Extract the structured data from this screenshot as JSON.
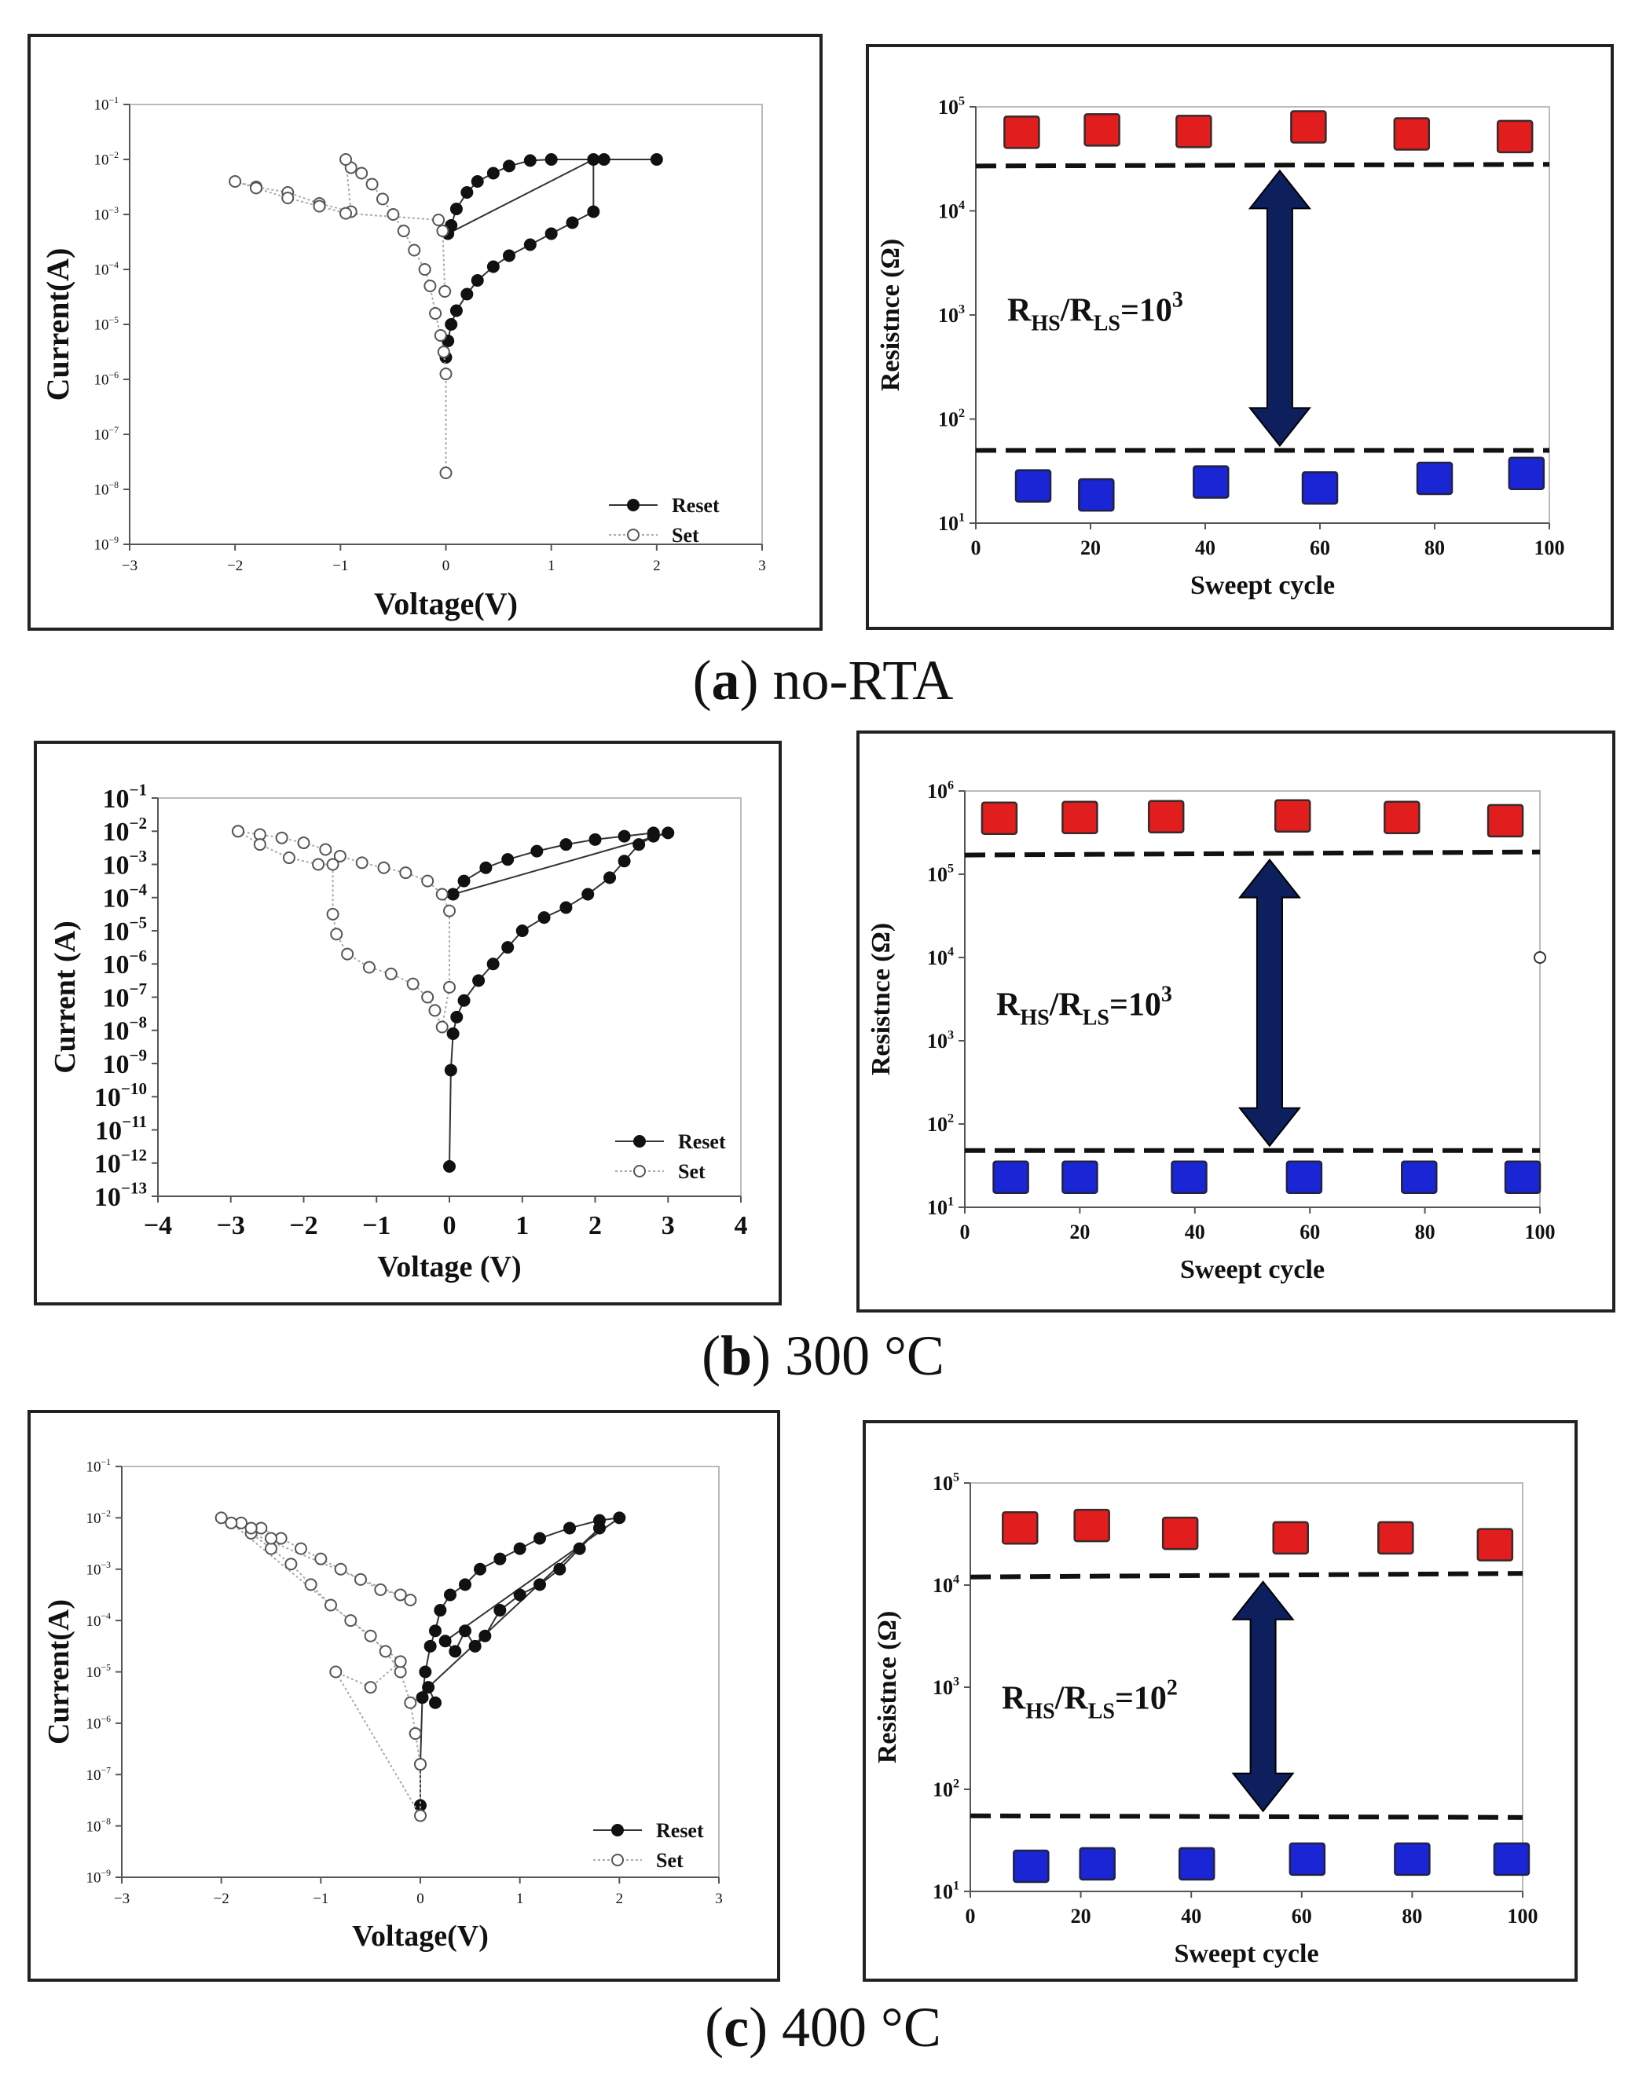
{
  "figure": {
    "captions": [
      {
        "letter": "a",
        "text": "no-RTA"
      },
      {
        "letter": "b",
        "text": "300 °C"
      },
      {
        "letter": "c",
        "text": "400 °C"
      }
    ]
  },
  "chart_data": [
    {
      "id": "a-iv",
      "type": "scatter",
      "xlabel": "Voltage(V)",
      "ylabel": "Current(A)",
      "xlim": [
        -3,
        3
      ],
      "ylim_exp": [
        -9,
        -1
      ],
      "xticks": [
        -3,
        -2,
        -1,
        0,
        1,
        2,
        3
      ],
      "legend": [
        "Reset",
        "Set"
      ],
      "series": [
        {
          "name": "Reset",
          "points": [
            [
              0,
              -5.6
            ],
            [
              0.02,
              -5.3
            ],
            [
              0.05,
              -5.0
            ],
            [
              0.1,
              -4.75
            ],
            [
              0.2,
              -4.45
            ],
            [
              0.3,
              -4.2
            ],
            [
              0.45,
              -3.95
            ],
            [
              0.6,
              -3.75
            ],
            [
              0.8,
              -3.55
            ],
            [
              1.0,
              -3.35
            ],
            [
              1.2,
              -3.15
            ],
            [
              1.4,
              -2.95
            ],
            [
              1.4,
              -2.0
            ],
            [
              0.02,
              -3.35
            ],
            [
              0.05,
              -3.2
            ],
            [
              0.1,
              -2.9
            ],
            [
              0.2,
              -2.6
            ],
            [
              0.3,
              -2.4
            ],
            [
              0.45,
              -2.25
            ],
            [
              0.6,
              -2.12
            ],
            [
              0.8,
              -2.02
            ],
            [
              1.0,
              -2.0
            ],
            [
              1.5,
              -2.0
            ],
            [
              2.0,
              -2.0
            ]
          ]
        },
        {
          "name": "Set",
          "points": [
            [
              0,
              -7.7
            ],
            [
              0,
              -5.9
            ],
            [
              -0.02,
              -5.5
            ],
            [
              -0.05,
              -5.2
            ],
            [
              -0.1,
              -4.8
            ],
            [
              -0.15,
              -4.3
            ],
            [
              -0.2,
              -4.0
            ],
            [
              -0.3,
              -3.65
            ],
            [
              -0.4,
              -3.3
            ],
            [
              -0.5,
              -3.0
            ],
            [
              -0.6,
              -2.72
            ],
            [
              -0.7,
              -2.45
            ],
            [
              -0.8,
              -2.25
            ],
            [
              -0.9,
              -2.15
            ],
            [
              -0.95,
              -2.0
            ],
            [
              -0.9,
              -2.95
            ],
            [
              -1.2,
              -2.8
            ],
            [
              -1.5,
              -2.6
            ],
            [
              -1.8,
              -2.5
            ],
            [
              -2.0,
              -2.4
            ],
            [
              -1.8,
              -2.52
            ],
            [
              -1.5,
              -2.7
            ],
            [
              -1.2,
              -2.85
            ],
            [
              -0.95,
              -2.98
            ],
            [
              -0.07,
              -3.1
            ],
            [
              -0.03,
              -3.3
            ],
            [
              -0.01,
              -4.4
            ]
          ]
        }
      ]
    },
    {
      "id": "a-res",
      "type": "scatter",
      "xlabel": "Sweept cycle",
      "ylabel": "Resistnce (Ω)",
      "xlim": [
        0,
        100
      ],
      "ylim_exp": [
        1,
        5
      ],
      "xticks": [
        0,
        20,
        40,
        60,
        80,
        100
      ],
      "annotation": {
        "base": "R",
        "sub1": "HS",
        "sep": "/R",
        "sub2": "LS",
        "eq": "=10",
        "exp": "3"
      },
      "hrs": {
        "x": [
          8,
          22,
          38,
          58,
          76,
          94
        ],
        "y": [
          55000,
          58000,
          56000,
          62000,
          53000,
          50000
        ]
      },
      "lrs": {
        "x": [
          10,
          21,
          41,
          60,
          80,
          96
        ],
        "y": [
          22,
          18,
          24,
          21,
          26,
          29
        ]
      },
      "hrs_line": [
        27000,
        28000
      ],
      "lrs_line": [
        50,
        50
      ]
    },
    {
      "id": "b-iv",
      "type": "scatter",
      "xlabel": "Voltage (V)",
      "ylabel": "Current (A)",
      "xlim": [
        -4,
        4
      ],
      "ylim_exp": [
        -13,
        -1
      ],
      "xticks": [
        -4,
        -3,
        -2,
        -1,
        0,
        1,
        2,
        3,
        4
      ],
      "legend": [
        "Reset",
        "Set"
      ],
      "series": [
        {
          "name": "Reset",
          "points": [
            [
              0,
              -12.1
            ],
            [
              0.02,
              -9.2
            ],
            [
              0.05,
              -8.1
            ],
            [
              0.1,
              -7.6
            ],
            [
              0.2,
              -7.1
            ],
            [
              0.4,
              -6.5
            ],
            [
              0.6,
              -6.0
            ],
            [
              0.8,
              -5.5
            ],
            [
              1.0,
              -5.0
            ],
            [
              1.3,
              -4.6
            ],
            [
              1.6,
              -4.3
            ],
            [
              1.9,
              -3.9
            ],
            [
              2.2,
              -3.4
            ],
            [
              2.4,
              -2.9
            ],
            [
              2.6,
              -2.4
            ],
            [
              2.8,
              -2.15
            ],
            [
              3.0,
              -2.05
            ],
            [
              0.05,
              -3.9
            ],
            [
              0.2,
              -3.5
            ],
            [
              0.5,
              -3.1
            ],
            [
              0.8,
              -2.85
            ],
            [
              1.2,
              -2.6
            ],
            [
              1.6,
              -2.4
            ],
            [
              2.0,
              -2.25
            ],
            [
              2.4,
              -2.15
            ],
            [
              2.8,
              -2.05
            ]
          ]
        },
        {
          "name": "Set",
          "points": [
            [
              -2.9,
              -2.0
            ],
            [
              -2.6,
              -2.1
            ],
            [
              -2.3,
              -2.2
            ],
            [
              -2.0,
              -2.35
            ],
            [
              -1.7,
              -2.55
            ],
            [
              -1.5,
              -2.75
            ],
            [
              -1.2,
              -2.95
            ],
            [
              -0.9,
              -3.1
            ],
            [
              -0.6,
              -3.25
            ],
            [
              -0.3,
              -3.5
            ],
            [
              -0.1,
              -3.9
            ],
            [
              0,
              -4.4
            ],
            [
              0,
              -6.7
            ],
            [
              -0.1,
              -7.9
            ],
            [
              -0.2,
              -7.4
            ],
            [
              -0.3,
              -7.0
            ],
            [
              -0.5,
              -6.6
            ],
            [
              -0.8,
              -6.3
            ],
            [
              -1.1,
              -6.1
            ],
            [
              -1.4,
              -5.7
            ],
            [
              -1.55,
              -5.1
            ],
            [
              -1.6,
              -4.5
            ],
            [
              -1.6,
              -3.0
            ],
            [
              -1.8,
              -3.0
            ],
            [
              -2.2,
              -2.8
            ],
            [
              -2.6,
              -2.4
            ],
            [
              -2.9,
              -2.0
            ]
          ]
        }
      ]
    },
    {
      "id": "b-res",
      "type": "scatter",
      "xlabel": "Sweept cycle",
      "ylabel": "Resistnce (Ω)",
      "xlim": [
        0,
        100
      ],
      "ylim_exp": [
        1,
        6
      ],
      "xticks": [
        0,
        20,
        40,
        60,
        80,
        100
      ],
      "annotation": {
        "base": "R",
        "sub1": "HS",
        "sep": "/R",
        "sub2": "LS",
        "eq": "=10",
        "exp": "3"
      },
      "hrs": {
        "x": [
          6,
          20,
          35,
          57,
          76,
          94
        ],
        "y": [
          450000,
          460000,
          470000,
          480000,
          460000,
          420000
        ]
      },
      "lrs": {
        "x": [
          8,
          20,
          39,
          59,
          79,
          97
        ],
        "y": [
          22,
          22,
          22,
          22,
          22,
          22
        ]
      },
      "hrs_line": [
        170000,
        185000
      ],
      "lrs_line": [
        48,
        48
      ],
      "stray_point": {
        "x": 100,
        "y": 10000
      }
    },
    {
      "id": "c-iv",
      "type": "scatter",
      "xlabel": "Voltage(V)",
      "ylabel": "Current(A)",
      "xlim": [
        -3,
        3
      ],
      "ylim_exp": [
        -9,
        -1
      ],
      "xticks": [
        -3,
        -2,
        -1,
        0,
        1,
        2,
        3
      ],
      "legend": [
        "Reset",
        "Set"
      ],
      "series": [
        {
          "name": "Reset",
          "points": [
            [
              0,
              -7.6
            ],
            [
              0,
              -6.8
            ],
            [
              0.02,
              -5.5
            ],
            [
              0.05,
              -5.0
            ],
            [
              0.1,
              -4.5
            ],
            [
              0.15,
              -4.2
            ],
            [
              0.2,
              -3.8
            ],
            [
              0.3,
              -3.5
            ],
            [
              0.45,
              -3.3
            ],
            [
              0.6,
              -3.0
            ],
            [
              0.8,
              -2.8
            ],
            [
              1.0,
              -2.6
            ],
            [
              1.2,
              -2.4
            ],
            [
              1.5,
              -2.2
            ],
            [
              1.8,
              -2.05
            ],
            [
              2.0,
              -2.0
            ],
            [
              0.25,
              -4.4
            ],
            [
              0.35,
              -4.6
            ],
            [
              0.45,
              -4.2
            ],
            [
              0.55,
              -4.5
            ],
            [
              0.65,
              -4.3
            ],
            [
              0.8,
              -3.8
            ],
            [
              1.0,
              -3.5
            ],
            [
              1.2,
              -3.3
            ],
            [
              1.4,
              -3.0
            ],
            [
              1.6,
              -2.6
            ],
            [
              1.8,
              -2.2
            ],
            [
              0.08,
              -5.3
            ],
            [
              0.15,
              -5.6
            ]
          ]
        },
        {
          "name": "Set",
          "points": [
            [
              -2.0,
              -2.0
            ],
            [
              -1.8,
              -2.1
            ],
            [
              -1.6,
              -2.2
            ],
            [
              -1.4,
              -2.4
            ],
            [
              -1.2,
              -2.6
            ],
            [
              -1.0,
              -2.8
            ],
            [
              -0.8,
              -3.0
            ],
            [
              -0.6,
              -3.2
            ],
            [
              -0.4,
              -3.4
            ],
            [
              -0.2,
              -3.5
            ],
            [
              -0.1,
              -3.6
            ],
            [
              -1.7,
              -2.3
            ],
            [
              -1.5,
              -2.6
            ],
            [
              -1.3,
              -2.9
            ],
            [
              -1.1,
              -3.3
            ],
            [
              -0.9,
              -3.7
            ],
            [
              -0.7,
              -4.0
            ],
            [
              -0.5,
              -4.3
            ],
            [
              -0.35,
              -4.6
            ],
            [
              -0.2,
              -5.0
            ],
            [
              -0.1,
              -5.6
            ],
            [
              -0.05,
              -6.2
            ],
            [
              0,
              -6.8
            ],
            [
              0,
              -7.8
            ],
            [
              -0.85,
              -5.0
            ],
            [
              -0.5,
              -5.3
            ],
            [
              -0.2,
              -4.8
            ],
            [
              -1.9,
              -2.1
            ],
            [
              -1.7,
              -2.2
            ],
            [
              -1.5,
              -2.4
            ]
          ]
        }
      ]
    },
    {
      "id": "c-res",
      "type": "scatter",
      "xlabel": "Sweept cycle",
      "ylabel": "Resistnce (Ω)",
      "xlim": [
        0,
        100
      ],
      "ylim_exp": [
        1,
        5
      ],
      "xticks": [
        0,
        20,
        40,
        60,
        80,
        100
      ],
      "annotation": {
        "base": "R",
        "sub1": "HS",
        "sep": "/R",
        "sub2": "LS",
        "eq": "=10",
        "exp": "2"
      },
      "hrs": {
        "x": [
          9,
          22,
          38,
          58,
          77,
          95
        ],
        "y": [
          35000,
          37000,
          31000,
          28000,
          28000,
          24000
        ]
      },
      "lrs": {
        "x": [
          11,
          23,
          41,
          61,
          80,
          98
        ],
        "y": [
          17,
          18,
          18,
          20,
          20,
          20
        ]
      },
      "hrs_line": [
        12000,
        13000
      ],
      "lrs_line": [
        55,
        53
      ]
    }
  ]
}
